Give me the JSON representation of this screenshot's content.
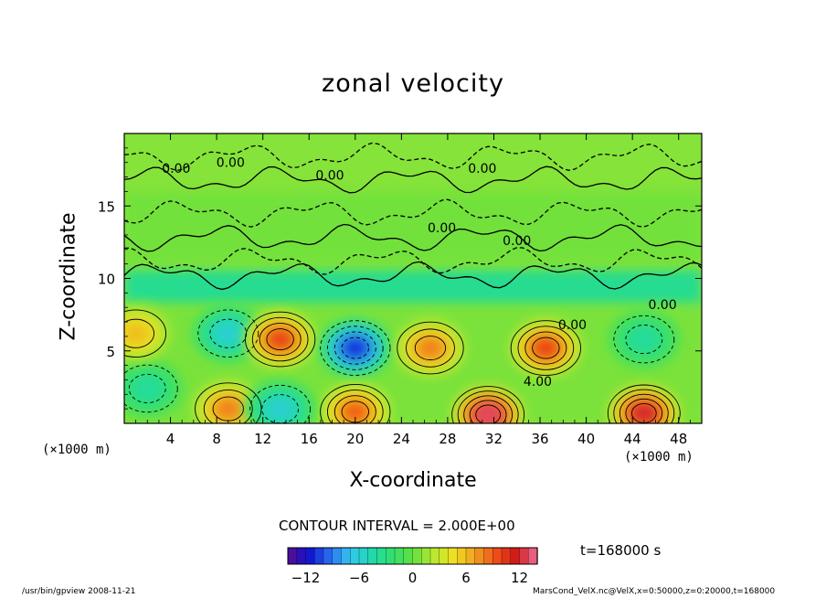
{
  "chart_data": {
    "type": "heatmap",
    "title": "zonal velocity",
    "xlabel": "X-coordinate",
    "ylabel": "Z-coordinate",
    "x_unit": "(×1000 m)",
    "y_unit": "(×1000 m)",
    "xlim": [
      0,
      50
    ],
    "ylim": [
      0,
      20
    ],
    "x_ticks": [
      4,
      8,
      12,
      16,
      20,
      24,
      28,
      32,
      36,
      40,
      44,
      48
    ],
    "y_ticks": [
      5,
      10,
      15
    ],
    "contour_interval_text": "CONTOUR INTERVAL = 2.000E+00",
    "contour_labels": [
      "0.00",
      "0.00",
      "0.00",
      "0.00",
      "0.00",
      "0.00",
      "0.00",
      "0.00",
      "4.00"
    ],
    "colorbar": {
      "range": [
        -14,
        14
      ],
      "ticks": [
        "−12",
        "−6",
        "0",
        "6",
        "12"
      ],
      "tick_values": [
        -12,
        -6,
        0,
        6,
        12
      ],
      "colormap": [
        "#5a0f8c",
        "#1010d0",
        "#2a6cf0",
        "#33c8f0",
        "#20d8b0",
        "#30e070",
        "#60e040",
        "#b8e830",
        "#f0e020",
        "#f0a020",
        "#f05018",
        "#d01818",
        "#f07098"
      ]
    },
    "features": [
      {
        "x": 9,
        "z": 6.2,
        "value": -6
      },
      {
        "x": 13.5,
        "z": 5.8,
        "value": 10
      },
      {
        "x": 20,
        "z": 5.2,
        "value": -11
      },
      {
        "x": 26.5,
        "z": 5.2,
        "value": 8
      },
      {
        "x": 36.5,
        "z": 5.2,
        "value": 10
      },
      {
        "x": 45,
        "z": 5.8,
        "value": -4
      },
      {
        "x": 31.5,
        "z": 0.6,
        "value": 13
      },
      {
        "x": 45,
        "z": 0.7,
        "value": 12
      },
      {
        "x": 20,
        "z": 0.8,
        "value": 9
      },
      {
        "x": 9,
        "z": 1.0,
        "value": 8
      },
      {
        "x": 2,
        "z": 2.4,
        "value": -4
      },
      {
        "x": 13.5,
        "z": 1.0,
        "value": -6
      },
      {
        "x": 1,
        "z": 6.2,
        "value": 6
      }
    ],
    "time_label": "t=168000 s"
  },
  "footer": {
    "left": "/usr/bin/gpview  2008-11-21",
    "right": "MarsCond_VelX.nc@VelX,x=0:50000,z=0:20000,t=168000"
  }
}
